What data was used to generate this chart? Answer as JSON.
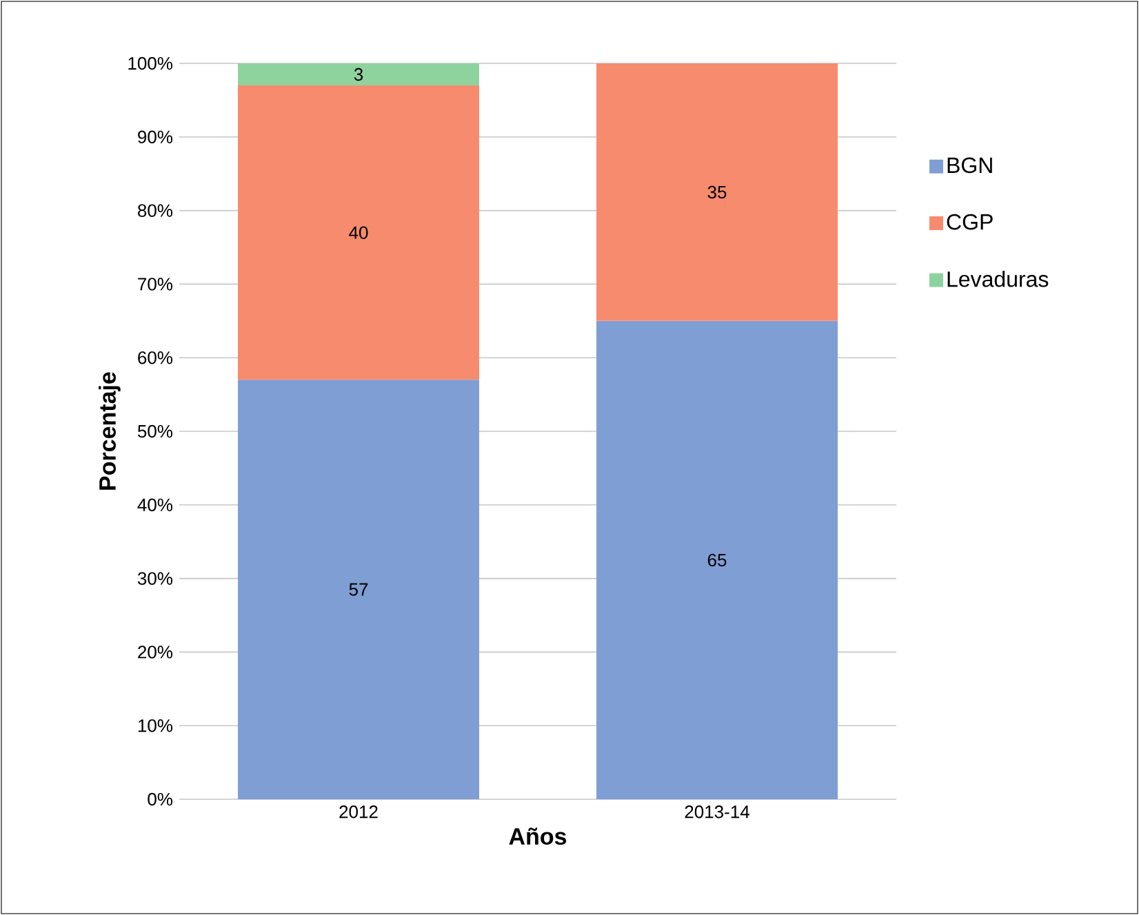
{
  "chart_data": {
    "type": "bar",
    "stacked": true,
    "xlabel": "Años",
    "ylabel": "Porcentaje",
    "categories": [
      "2012",
      "2013-14"
    ],
    "series": [
      {
        "name": "BGN",
        "color": "#7f9ed4",
        "values": [
          57,
          65
        ]
      },
      {
        "name": "CGP",
        "color": "#f68b6d",
        "values": [
          40,
          35
        ]
      },
      {
        "name": "Levaduras",
        "color": "#8ed39e",
        "values": [
          3,
          null
        ]
      }
    ],
    "ylim": [
      0,
      100
    ],
    "yticks": [
      {
        "value": 0,
        "label": "0%"
      },
      {
        "value": 10,
        "label": "10%"
      },
      {
        "value": 20,
        "label": "20%"
      },
      {
        "value": 30,
        "label": "30%"
      },
      {
        "value": 40,
        "label": "40%"
      },
      {
        "value": 50,
        "label": "50%"
      },
      {
        "value": 60,
        "label": "60%"
      },
      {
        "value": 70,
        "label": "70%"
      },
      {
        "value": 80,
        "label": "80%"
      },
      {
        "value": 90,
        "label": "90%"
      },
      {
        "value": 100,
        "label": "100%"
      }
    ],
    "grid": "y",
    "legend": "right",
    "data_labels": true
  }
}
